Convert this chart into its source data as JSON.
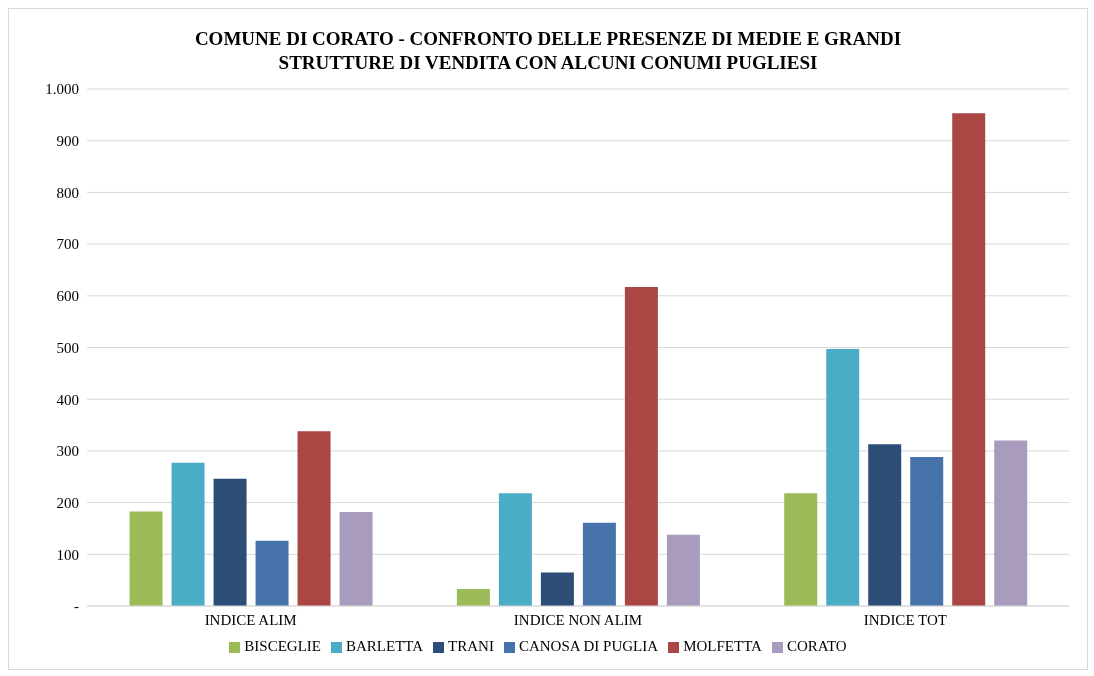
{
  "chart_data": {
    "type": "bar",
    "title": "COMUNE DI CORATO - CONFRONTO DELLE PRESENZE DI MEDIE E GRANDI\nSTRUTTURE DI VENDITA CON ALCUNI CONUMI PUGLIESI",
    "categories": [
      "INDICE ALIM",
      "INDICE NON ALIM",
      "INDICE TOT"
    ],
    "series": [
      {
        "name": "BISCEGLIE",
        "color": "#9bbb59",
        "values": [
          183,
          33,
          218
        ]
      },
      {
        "name": "BARLETTA",
        "color": "#4bacc6",
        "values": [
          277,
          218,
          497
        ]
      },
      {
        "name": "TRANI",
        "color": "#2c4d75",
        "values": [
          246,
          65,
          313
        ]
      },
      {
        "name": "CANOSA DI PUGLIA",
        "color": "#4674aa",
        "values": [
          126,
          161,
          288
        ]
      },
      {
        "name": "MOLFETTA",
        "color": "#aa4644",
        "values": [
          338,
          617,
          953
        ]
      },
      {
        "name": "CORATO",
        "color": "#a99bbd",
        "values": [
          182,
          138,
          320
        ]
      }
    ],
    "ylim": [
      0,
      1000
    ],
    "yticks": [
      {
        "value": 0,
        "label": "-"
      },
      100,
      200,
      300,
      400,
      500,
      600,
      700,
      800,
      900,
      {
        "value": 1000,
        "label": "1.000"
      }
    ],
    "grid": "y",
    "legend": "bottom"
  }
}
